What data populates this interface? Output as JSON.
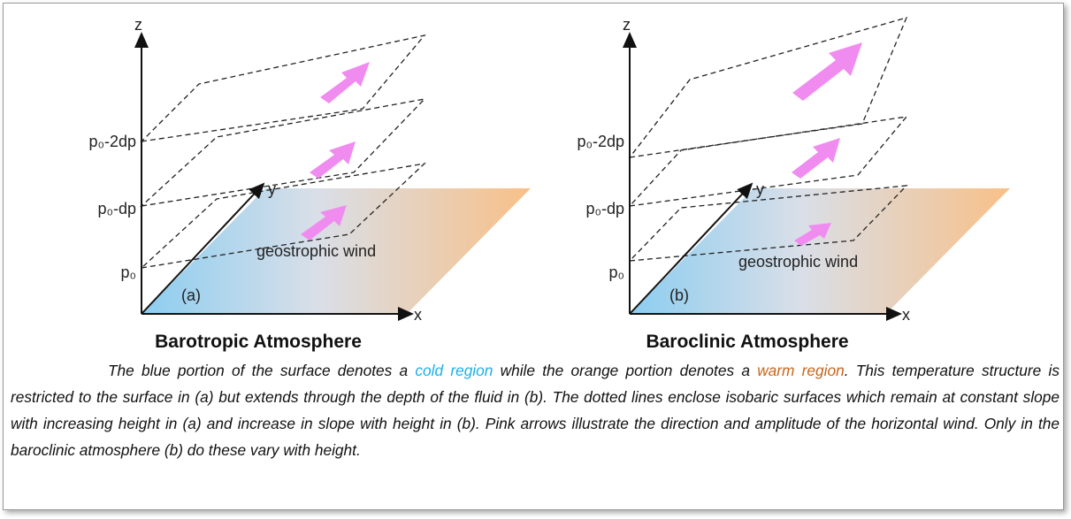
{
  "panels": [
    {
      "z_label": "z",
      "y_label": "y",
      "x_label": "x",
      "levels": [
        "p₀-2dp",
        "p₀-dp",
        "p₀"
      ],
      "tag": "(a)",
      "wind_label": "geostrophic wind",
      "title": "Barotropic Atmosphere"
    },
    {
      "z_label": "z",
      "y_label": "y",
      "x_label": "x",
      "levels": [
        "p₀-2dp",
        "p₀-dp",
        "p₀"
      ],
      "tag": "(b)",
      "wind_label": "geostrophic wind",
      "title": "Baroclinic Atmosphere"
    }
  ],
  "caption": {
    "before": "The blue portion of the surface denotes a ",
    "cold": "cold region",
    "middle": " while the orange portion denotes a ",
    "warm": "warm region",
    "after": ". This temperature structure is restricted to the surface in (a) but extends through the depth of the fluid in (b). The dotted lines enclose isobaric surfaces which remain at constant slope with increasing height in (a) and increase in slope with height in (b). Pink arrows illustrate the direction and amplitude of the horizontal wind. Only in the baroclinic atmosphere (b) do these vary with height."
  }
}
